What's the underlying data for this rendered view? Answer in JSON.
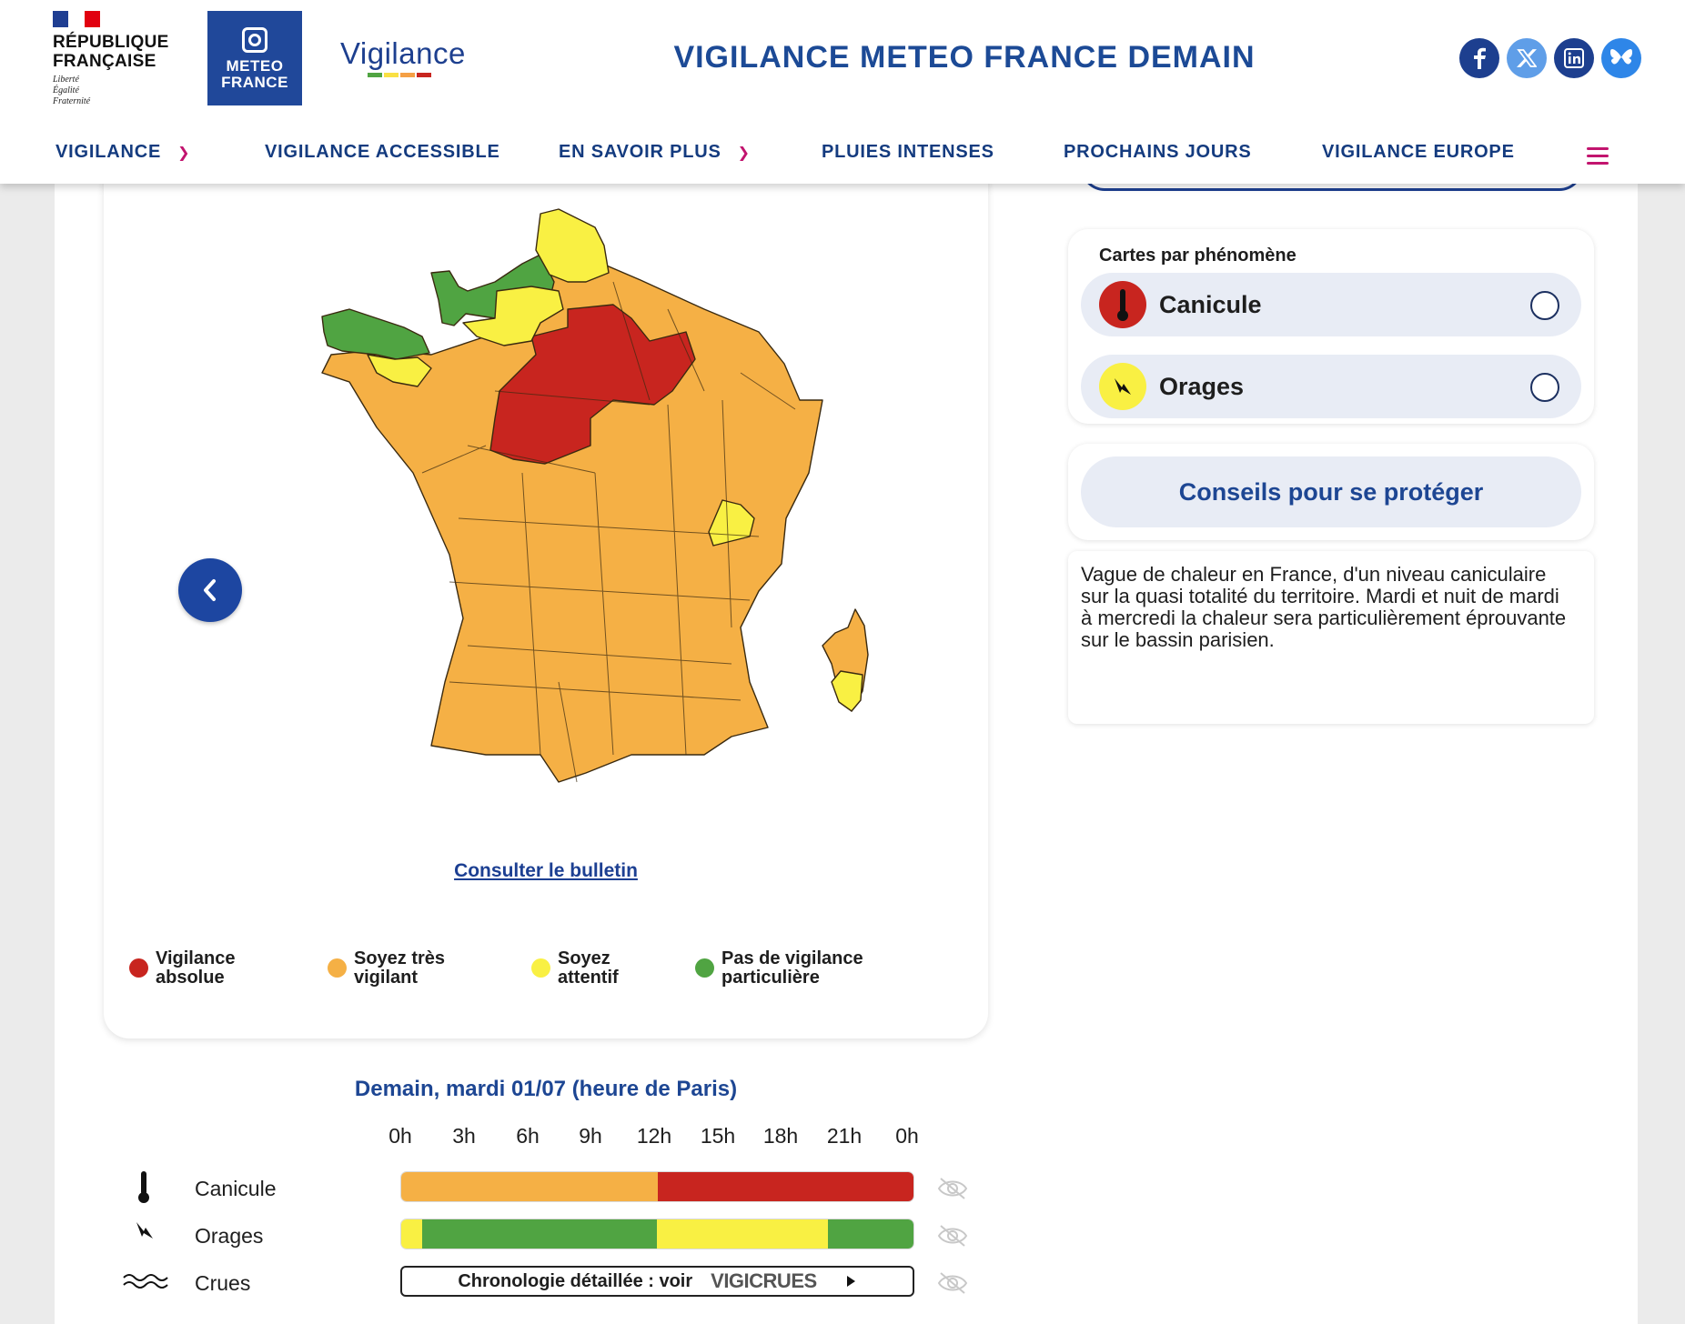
{
  "header": {
    "republique": "RÉPUBLIQUE\nFRANÇAISE",
    "motto": [
      "Liberté",
      "Égalité",
      "Fraternité"
    ],
    "meteo_france": [
      "METEO",
      "FRANCE"
    ],
    "vigilance_logo": "Vigilance",
    "site_title": "VIGILANCE METEO FRANCE DEMAIN",
    "social": [
      {
        "name": "facebook",
        "glyph": "f",
        "color": "#1d3f8f"
      },
      {
        "name": "x",
        "glyph": "𝕏",
        "color": "#5f9ee8"
      },
      {
        "name": "linkedin",
        "glyph": "in",
        "color": "#1d3f8f"
      },
      {
        "name": "bluesky",
        "glyph": "🦋",
        "color": "#2e86e8"
      }
    ]
  },
  "nav": {
    "items": [
      {
        "label": "VIGILANCE",
        "dropdown": true
      },
      {
        "label": "VIGILANCE ACCESSIBLE",
        "dropdown": false
      },
      {
        "label": "EN SAVOIR PLUS",
        "dropdown": true
      },
      {
        "label": "PLUIES INTENSES",
        "dropdown": false
      },
      {
        "label": "PROCHAINS JOURS",
        "dropdown": false
      },
      {
        "label": "VIGILANCE EUROPE",
        "dropdown": false
      }
    ]
  },
  "map": {
    "bulletin_link": "Consulter le bulletin",
    "legend": [
      {
        "label": "Vigilance absolue",
        "color": "#c8251f"
      },
      {
        "label": "Soyez très vigilant",
        "color": "#f5b045"
      },
      {
        "label": "Soyez attentif",
        "color": "#f9f043"
      },
      {
        "label": "Pas de vigilance particulière",
        "color": "#50a442"
      }
    ]
  },
  "sidebar": {
    "cartes_title": "Cartes par phénomène",
    "phenomena": [
      {
        "label": "Canicule",
        "icon": "thermometer-icon",
        "icon_bg": "#c8251f"
      },
      {
        "label": "Orages",
        "icon": "lightning-icon",
        "icon_bg": "#f9f043"
      }
    ],
    "conseils_label": "Conseils pour se protéger",
    "description": "Vague de chaleur en France, d'un niveau caniculaire sur la quasi totalité du territoire. Mardi et nuit de mardi à mercredi la chaleur sera particulièrement éprouvante sur le bassin parisien."
  },
  "timeline": {
    "title": "Demain, mardi 01/07 (heure de Paris)",
    "hours": [
      "0h",
      "3h",
      "6h",
      "9h",
      "12h",
      "15h",
      "18h",
      "21h",
      "0h"
    ],
    "rows": [
      {
        "label": "Canicule",
        "icon": "thermometer-icon",
        "segments": [
          {
            "from_hour": 0,
            "to_hour": 12,
            "color": "#f5b045"
          },
          {
            "from_hour": 12,
            "to_hour": 24,
            "color": "#c8251f"
          }
        ]
      },
      {
        "label": "Orages",
        "icon": "lightning-icon",
        "segments": [
          {
            "from_hour": 0,
            "to_hour": 1,
            "color": "#f9f043"
          },
          {
            "from_hour": 1,
            "to_hour": 12,
            "color": "#50a442"
          },
          {
            "from_hour": 12,
            "to_hour": 20,
            "color": "#f9f043"
          },
          {
            "from_hour": 20,
            "to_hour": 24,
            "color": "#50a442"
          }
        ]
      },
      {
        "label": "Crues",
        "icon": "waves-icon"
      }
    ],
    "crues_button": "Chronologie détaillée : voir",
    "vigicrues": "VIGICRUES"
  }
}
